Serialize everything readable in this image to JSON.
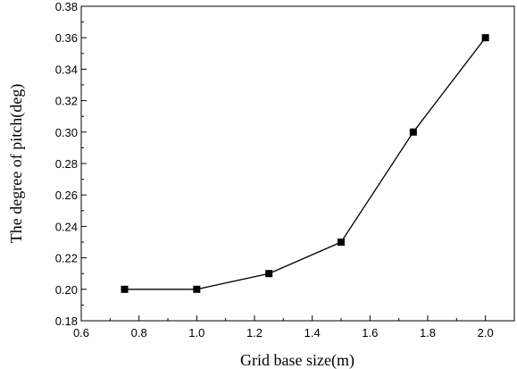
{
  "chart_data": {
    "type": "line",
    "title": "",
    "xlabel": "Grid base size(m)",
    "ylabel": "The degree of pitch(deg)",
    "xlim": [
      0.6,
      2.1
    ],
    "ylim": [
      0.18,
      0.38
    ],
    "xticks": [
      0.6,
      0.8,
      1.0,
      1.2,
      1.4,
      1.6,
      1.8,
      2.0
    ],
    "xtick_labels": [
      "0.6",
      "0.8",
      "1.0",
      "1.2",
      "1.4",
      "1.6",
      "1.8",
      "2.0"
    ],
    "yticks": [
      0.18,
      0.2,
      0.22,
      0.24,
      0.26,
      0.28,
      0.3,
      0.32,
      0.34,
      0.36,
      0.38
    ],
    "ytick_labels": [
      "0.18",
      "0.20",
      "0.22",
      "0.24",
      "0.26",
      "0.28",
      "0.30",
      "0.32",
      "0.34",
      "0.36",
      "0.38"
    ],
    "grid": false,
    "legend": "none",
    "marker": "square",
    "line_color": "#000000",
    "series": [
      {
        "x": [
          0.75,
          1.0,
          1.25,
          1.5,
          1.75,
          2.0
        ],
        "y": [
          0.2,
          0.2,
          0.21,
          0.23,
          0.3,
          0.36
        ]
      }
    ]
  }
}
